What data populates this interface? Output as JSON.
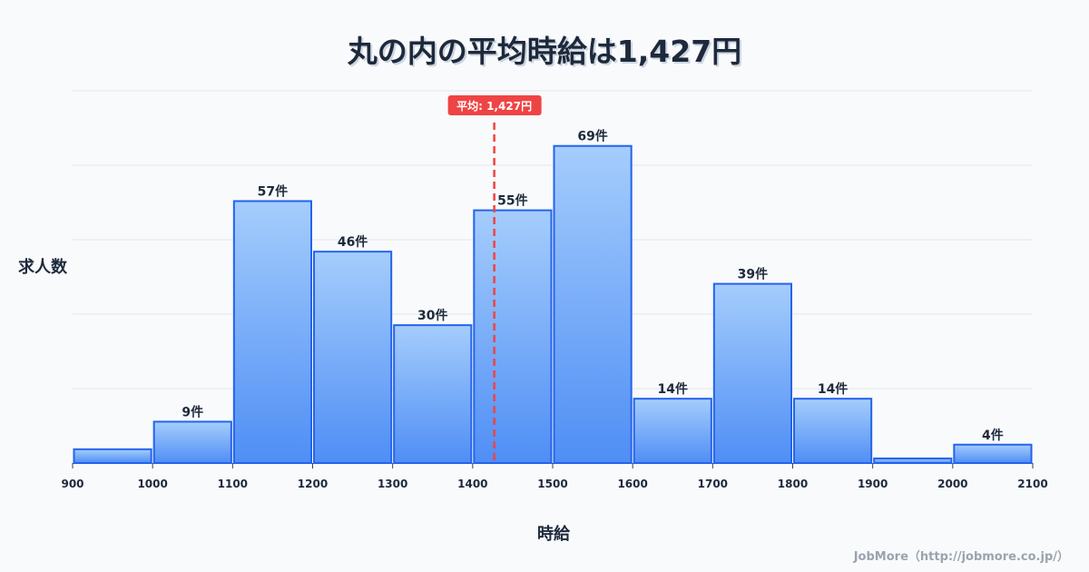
{
  "chart_data": {
    "type": "bar",
    "title": "丸の内の平均時給は1,427円",
    "xlabel": "時給",
    "ylabel": "求人数",
    "bin_edges": [
      900,
      1000,
      1100,
      1200,
      1300,
      1400,
      1500,
      1600,
      1700,
      1800,
      1900,
      2000,
      2100
    ],
    "values": [
      3,
      9,
      57,
      46,
      30,
      55,
      69,
      14,
      39,
      14,
      1,
      4
    ],
    "data_labels": [
      "",
      "9件",
      "57件",
      "46件",
      "30件",
      "55件",
      "69件",
      "14件",
      "39件",
      "14件",
      "",
      "4件"
    ],
    "x_ticks": [
      "900",
      "1000",
      "1100",
      "1200",
      "1300",
      "1400",
      "1500",
      "1600",
      "1700",
      "1800",
      "1900",
      "2000",
      "2100"
    ],
    "xlim": [
      900,
      2100
    ],
    "ylim": [
      0,
      81
    ],
    "grid": true,
    "mean": {
      "value": 1427,
      "label": "平均: 1,427円",
      "color": "#ef4444"
    },
    "bar_color": "#60a5fa",
    "bar_edge": "#2563eb"
  },
  "credit": "JobMore（http://jobmore.co.jp/）"
}
